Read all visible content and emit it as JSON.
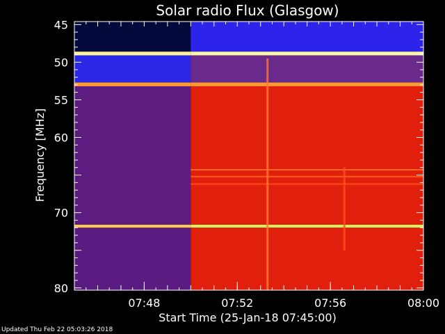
{
  "chart_data": {
    "type": "heatmap",
    "title": "Solar radio Flux (Glasgow)",
    "xlabel": "Start Time (25-Jan-18 07:45:00)",
    "ylabel": "Frequency [MHz]",
    "x_ticks": [
      "07:48",
      "07:52",
      "07:56",
      "08:00"
    ],
    "x_tick_minutes": [
      3,
      7,
      11,
      15
    ],
    "xlim_minutes": [
      0,
      15
    ],
    "y_ticks": [
      45,
      50,
      55,
      60,
      70,
      80
    ],
    "ylim": [
      44.6,
      80.3
    ],
    "grid": false,
    "instrument_turn_on_minute": 5,
    "bands_before_turn_on": [
      {
        "from": 44.6,
        "to": 48.6,
        "color": "#050a3c"
      },
      {
        "from": 48.6,
        "to": 49.1,
        "color": "#fff2a0"
      },
      {
        "from": 49.1,
        "to": 51.9,
        "color": "#2a28e6"
      },
      {
        "from": 51.9,
        "to": 52.7,
        "color": "#2a28e6"
      },
      {
        "from": 52.7,
        "to": 53.2,
        "color": "#ff9a30"
      },
      {
        "from": 53.2,
        "to": 71.6,
        "color": "#5c1c80"
      },
      {
        "from": 71.6,
        "to": 72.0,
        "color": "#ffc850"
      },
      {
        "from": 72.0,
        "to": 80.3,
        "color": "#5a1c80"
      }
    ],
    "bands_after_turn_on": [
      {
        "from": 44.6,
        "to": 48.6,
        "color": "#2c24ea"
      },
      {
        "from": 48.6,
        "to": 49.1,
        "color": "#fff4b0"
      },
      {
        "from": 49.1,
        "to": 52.7,
        "color": "#6a2a8c"
      },
      {
        "from": 52.7,
        "to": 53.2,
        "color": "#ff9a30"
      },
      {
        "from": 53.2,
        "to": 71.6,
        "color": "#e0200c"
      },
      {
        "from": 71.6,
        "to": 72.0,
        "color": "#d8f060"
      },
      {
        "from": 72.0,
        "to": 80.3,
        "color": "#e0200c"
      }
    ],
    "bright_lines": [
      {
        "freq": 64.3,
        "color": "#ff6a20"
      },
      {
        "freq": 65.2,
        "color": "#ff5a18"
      },
      {
        "freq": 66.2,
        "color": "#ff4a14"
      }
    ],
    "vertical_features": [
      {
        "minute": 8.3,
        "from": 49.5,
        "to": 80.3,
        "color": "#ff7a30"
      },
      {
        "minute": 11.6,
        "from": 64.0,
        "to": 75.0,
        "color": "#ff5020"
      }
    ]
  },
  "footer": {
    "updated": "Updated Thu Feb 22 05:03:26 2018"
  }
}
